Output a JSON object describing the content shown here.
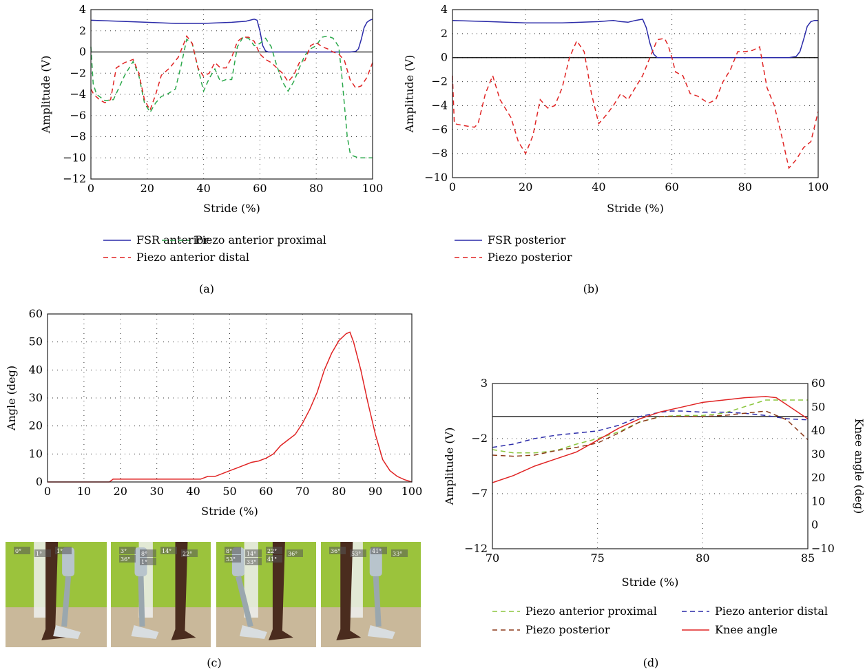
{
  "panels": {
    "a": {
      "caption": "(a)"
    },
    "b": {
      "caption": "(b)"
    },
    "c": {
      "caption": "(c)"
    },
    "d": {
      "caption": "(d)"
    }
  },
  "photos": {
    "labels": [
      [
        "0°",
        "1°",
        "1°"
      ],
      [
        "3°",
        "8°",
        "14°",
        "22°",
        "36°",
        "1°"
      ],
      [
        "8°",
        "14°",
        "22°",
        "36°",
        "53°",
        "33°",
        "41°"
      ],
      [
        "36°",
        "53°",
        "41°",
        "33°"
      ]
    ],
    "colors": {
      "wall": "#9bc33c",
      "floor": "#c9b89a",
      "skin": "#4a2c1e",
      "prosthesis": "#d8dde0"
    }
  },
  "chart_data": [
    {
      "id": "a",
      "type": "line",
      "xlabel": "Stride (%)",
      "ylabel": "Amplitude (V)",
      "xlim": [
        0,
        100
      ],
      "ylim": [
        -12,
        4
      ],
      "xticks": [
        0,
        20,
        40,
        60,
        80,
        100
      ],
      "yticks": [
        -12,
        -10,
        -8,
        -6,
        -4,
        -2,
        0,
        2,
        4
      ],
      "grid": true,
      "legend_position": "bottom",
      "series": [
        {
          "name": "FSR anterior",
          "color": "#2a2aa8",
          "dash": "solid",
          "x": [
            0,
            10,
            20,
            30,
            40,
            50,
            55,
            58,
            59,
            60,
            61,
            62,
            63,
            64,
            70,
            80,
            90,
            92,
            94,
            95,
            96,
            97,
            98,
            99,
            100
          ],
          "y": [
            3.0,
            2.9,
            2.8,
            2.7,
            2.7,
            2.8,
            2.9,
            3.1,
            3.0,
            2.0,
            0.6,
            0.1,
            0.0,
            0.0,
            0.0,
            0.0,
            0.0,
            0.0,
            0.05,
            0.3,
            1.2,
            2.3,
            2.8,
            3.0,
            3.1
          ]
        },
        {
          "name": "Piezo anterior proximal",
          "color": "#2aa84a",
          "dash": "dashed",
          "x": [
            0,
            0.8,
            2,
            5,
            8,
            12,
            15,
            17,
            19,
            21,
            23,
            25,
            27,
            30,
            32,
            34,
            36,
            38,
            40,
            42,
            44,
            46,
            48,
            50,
            52,
            54,
            56,
            58,
            60,
            62,
            64,
            66,
            68,
            70,
            72,
            74,
            76,
            78,
            80,
            82,
            84,
            86,
            88,
            89,
            90,
            91,
            92,
            93,
            95,
            97,
            100
          ],
          "y": [
            0.5,
            -3.0,
            -4.0,
            -4.6,
            -4.5,
            -2.2,
            -0.9,
            -2.2,
            -4.8,
            -5.7,
            -4.8,
            -4.2,
            -4.0,
            -3.5,
            -1.3,
            1.2,
            0.8,
            -1.5,
            -3.7,
            -2.5,
            -1.6,
            -2.8,
            -2.6,
            -2.6,
            0.5,
            1.4,
            1.3,
            0.6,
            0.8,
            1.3,
            0.5,
            -1.3,
            -2.8,
            -3.7,
            -2.8,
            -1.5,
            -0.3,
            0.3,
            0.6,
            1.4,
            1.5,
            1.3,
            0.5,
            -2.0,
            -5.0,
            -8.0,
            -9.5,
            -9.8,
            -10.0,
            -10.0,
            -10.0
          ]
        },
        {
          "name": "Piezo anterior distal",
          "color": "#e02424",
          "dash": "dashed",
          "x": [
            0,
            1,
            3,
            5,
            7,
            9,
            12,
            15,
            17,
            19,
            21,
            23,
            25,
            28,
            31,
            33,
            34,
            36,
            38,
            40,
            42,
            44,
            46,
            48,
            50,
            52,
            54,
            56,
            58,
            60,
            62,
            64,
            66,
            68,
            70,
            72,
            74,
            76,
            78,
            80,
            82,
            84,
            86,
            88,
            90,
            92,
            94,
            96,
            98,
            100
          ],
          "y": [
            -3.5,
            -4.0,
            -4.5,
            -4.8,
            -4.5,
            -1.5,
            -1.0,
            -0.7,
            -2.0,
            -4.5,
            -5.5,
            -4.0,
            -2.2,
            -1.5,
            -0.5,
            0.8,
            1.5,
            0.8,
            -1.5,
            -2.3,
            -2.0,
            -1.0,
            -1.5,
            -1.5,
            -0.5,
            1.0,
            1.4,
            1.4,
            1.0,
            -0.2,
            -0.7,
            -1.0,
            -1.5,
            -2.0,
            -2.8,
            -2.2,
            -1.0,
            -0.8,
            0.6,
            0.9,
            0.5,
            0.3,
            0.0,
            -0.2,
            -0.8,
            -2.6,
            -3.4,
            -3.2,
            -2.4,
            -1.0
          ]
        }
      ]
    },
    {
      "id": "b",
      "type": "line",
      "xlabel": "Stride (%)",
      "ylabel": "Amplitude (V)",
      "xlim": [
        0,
        100
      ],
      "ylim": [
        -10,
        4
      ],
      "xticks": [
        0,
        20,
        40,
        60,
        80,
        100
      ],
      "yticks": [
        -10,
        -8,
        -6,
        -4,
        -2,
        0,
        2,
        4
      ],
      "grid": true,
      "legend_position": "bottom",
      "series": [
        {
          "name": "FSR posterior",
          "color": "#2a2aa8",
          "dash": "solid",
          "x": [
            0,
            10,
            20,
            30,
            40,
            44,
            46,
            48,
            50,
            52,
            53,
            54,
            55,
            56,
            60,
            80,
            90,
            92,
            94,
            95,
            96,
            97,
            98,
            99,
            100
          ],
          "y": [
            3.1,
            3.0,
            2.9,
            2.9,
            3.0,
            3.1,
            3.0,
            2.95,
            3.1,
            3.2,
            2.5,
            1.2,
            0.3,
            0.0,
            0.0,
            0.0,
            0.0,
            0.0,
            0.1,
            0.5,
            1.5,
            2.6,
            3.0,
            3.1,
            3.1
          ]
        },
        {
          "name": "Piezo posterior",
          "color": "#e02424",
          "dash": "dashed",
          "x": [
            0,
            0.5,
            2,
            4,
            6,
            7,
            9,
            11,
            13,
            16,
            18,
            20,
            22,
            24,
            26,
            28,
            30,
            32,
            34,
            36,
            38,
            40,
            42,
            44,
            46,
            48,
            50,
            52,
            54,
            56,
            58,
            59,
            60,
            61,
            63,
            65,
            67,
            70,
            72,
            74,
            76,
            78,
            80,
            82,
            84,
            86,
            88,
            90,
            92,
            94,
            96,
            98,
            100
          ],
          "y": [
            -1.5,
            -5.5,
            -5.6,
            -5.7,
            -5.8,
            -5.5,
            -3.0,
            -1.5,
            -3.5,
            -5.0,
            -7.0,
            -8.0,
            -6.5,
            -3.5,
            -4.2,
            -4.0,
            -2.5,
            0.0,
            1.4,
            0.5,
            -3.0,
            -5.5,
            -4.8,
            -4.0,
            -3.0,
            -3.5,
            -2.5,
            -1.5,
            0.0,
            1.5,
            1.6,
            1.0,
            0.0,
            -1.2,
            -1.5,
            -3.0,
            -3.2,
            -3.8,
            -3.5,
            -2.0,
            -1.0,
            0.5,
            0.5,
            0.6,
            0.9,
            -2.5,
            -4.0,
            -6.5,
            -9.2,
            -8.5,
            -7.5,
            -7.0,
            -4.5
          ]
        }
      ]
    },
    {
      "id": "c",
      "type": "line",
      "xlabel": "Stride (%)",
      "ylabel": "Angle (deg)",
      "xlim": [
        0,
        100
      ],
      "ylim": [
        0,
        60
      ],
      "xticks": [
        0,
        10,
        20,
        30,
        40,
        50,
        60,
        70,
        80,
        90,
        100
      ],
      "yticks": [
        0,
        10,
        20,
        30,
        40,
        50,
        60
      ],
      "grid": true,
      "series": [
        {
          "color": "#e02424",
          "dash": "solid",
          "x": [
            0,
            17,
            18,
            42,
            44,
            46,
            48,
            50,
            52,
            54,
            56,
            58,
            60,
            62,
            64,
            66,
            68,
            70,
            72,
            74,
            76,
            78,
            80,
            82,
            83,
            84,
            86,
            88,
            90,
            92,
            94,
            96,
            98,
            100
          ],
          "y": [
            0,
            0,
            1,
            1,
            2,
            2,
            3,
            4,
            5,
            6,
            7,
            7.5,
            8.5,
            10,
            13,
            15,
            17,
            21,
            26,
            32,
            40,
            46,
            50.5,
            53,
            53.5,
            50,
            40,
            28,
            17,
            8,
            4,
            2,
            0.8,
            0
          ]
        }
      ]
    },
    {
      "id": "d",
      "type": "line",
      "xlabel": "Stride (%)",
      "ylabel": "Amplitude (V)",
      "y2label": "Knee angle (deg)",
      "xlim": [
        70,
        85
      ],
      "ylim": [
        -12,
        3
      ],
      "y2lim": [
        -10,
        60
      ],
      "xticks": [
        70,
        75,
        80,
        85
      ],
      "yticks": [
        -12,
        -7,
        -2,
        3
      ],
      "y2ticks": [
        -10,
        0,
        10,
        20,
        30,
        40,
        50,
        60
      ],
      "grid": true,
      "legend_position": "bottom",
      "series": [
        {
          "name": "Piezo anterior proximal",
          "color": "#8cc63f",
          "dash": "dashed",
          "axis": "left",
          "x": [
            70,
            71,
            72,
            73,
            74,
            75,
            76,
            77,
            78,
            79,
            80,
            81,
            82,
            83,
            84,
            85
          ],
          "y": [
            -3.0,
            -3.3,
            -3.3,
            -3.1,
            -2.5,
            -2.0,
            -1.4,
            -0.5,
            0.0,
            0.1,
            0.1,
            0.3,
            0.9,
            1.5,
            1.5,
            1.5
          ]
        },
        {
          "name": "Piezo anterior distal",
          "color": "#2a2aa8",
          "dash": "dashed",
          "axis": "left",
          "x": [
            70,
            71,
            72,
            73,
            74,
            75,
            76,
            77,
            78,
            78.5,
            79,
            80,
            81,
            82,
            83,
            84,
            85
          ],
          "y": [
            -2.8,
            -2.5,
            -2.0,
            -1.7,
            -1.5,
            -1.3,
            -0.8,
            0.0,
            0.4,
            0.5,
            0.5,
            0.4,
            0.4,
            0.3,
            0.1,
            -0.2,
            -0.3
          ]
        },
        {
          "name": "Piezo posterior",
          "color": "#8b3a1a",
          "dash": "dashed",
          "axis": "left",
          "x": [
            70,
            71,
            72,
            73,
            74,
            75,
            76,
            77,
            78,
            79,
            80,
            81,
            82,
            83,
            84,
            85
          ],
          "y": [
            -3.5,
            -3.6,
            -3.5,
            -3.1,
            -2.8,
            -2.4,
            -1.5,
            -0.5,
            0.0,
            0.0,
            0.0,
            0.1,
            0.3,
            0.5,
            -0.3,
            -2.1
          ]
        },
        {
          "name": "Knee angle",
          "color": "#e02424",
          "dash": "solid",
          "axis": "right",
          "x": [
            70,
            71,
            72,
            73,
            74,
            75,
            76,
            77,
            78,
            79,
            80,
            81,
            82,
            83,
            83.5,
            84,
            85
          ],
          "y": [
            18,
            21,
            25,
            28,
            31,
            36,
            41,
            45,
            48,
            50,
            52,
            53,
            54,
            54.5,
            54,
            51,
            45
          ]
        }
      ]
    }
  ]
}
